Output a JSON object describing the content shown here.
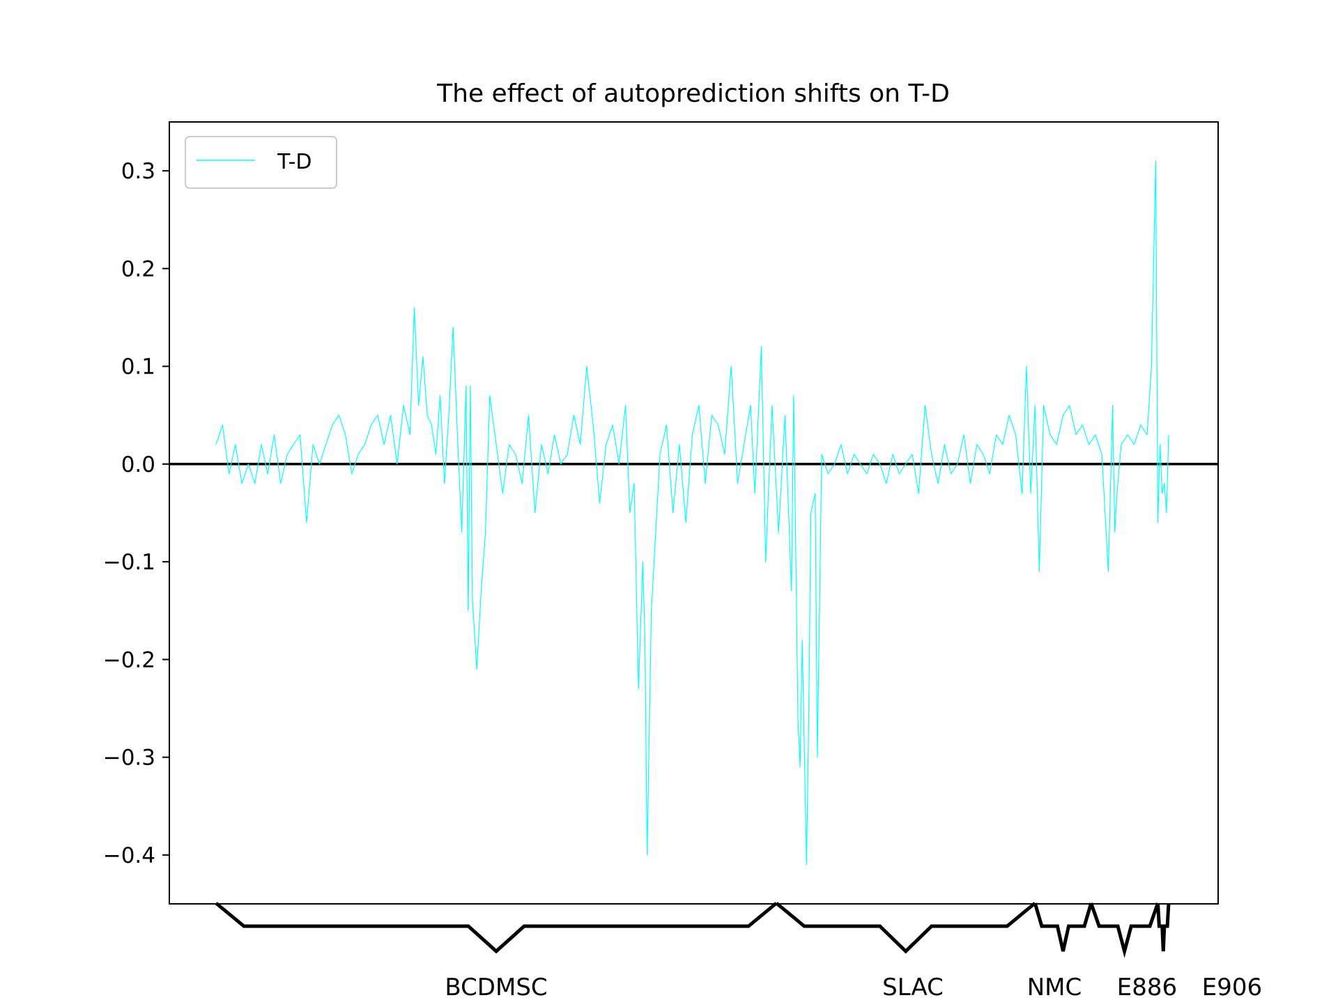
{
  "chart_data": {
    "type": "line",
    "title": "The effect of autoprediction shifts on T-D",
    "xlabel": "",
    "ylabel": "",
    "ylim": [
      -0.45,
      0.35
    ],
    "yticks": [
      0.3,
      0.2,
      0.1,
      0.0,
      -0.1,
      -0.2,
      -0.3,
      -0.4
    ],
    "ytick_labels": [
      "0.3",
      "0.2",
      "0.1",
      "0.0",
      "−0.1",
      "−0.2",
      "−0.3",
      "−0.4"
    ],
    "grid": false,
    "legend": {
      "position": "top-left",
      "entries": [
        "T-D"
      ]
    },
    "reference_line": {
      "y": 0.0,
      "color": "#000000"
    },
    "series": [
      {
        "name": "T-D",
        "color": "#00ffff",
        "keypoints": [
          [
            0,
            0.02
          ],
          [
            3,
            0.04
          ],
          [
            6,
            -0.01
          ],
          [
            9,
            0.02
          ],
          [
            12,
            -0.02
          ],
          [
            15,
            0.0
          ],
          [
            18,
            -0.02
          ],
          [
            21,
            0.02
          ],
          [
            24,
            -0.01
          ],
          [
            27,
            0.03
          ],
          [
            30,
            -0.02
          ],
          [
            33,
            0.01
          ],
          [
            36,
            0.02
          ],
          [
            39,
            0.03
          ],
          [
            42,
            -0.06
          ],
          [
            45,
            0.02
          ],
          [
            48,
            0.0
          ],
          [
            51,
            0.02
          ],
          [
            54,
            0.04
          ],
          [
            57,
            0.05
          ],
          [
            60,
            0.03
          ],
          [
            63,
            -0.01
          ],
          [
            66,
            0.01
          ],
          [
            69,
            0.02
          ],
          [
            72,
            0.04
          ],
          [
            75,
            0.05
          ],
          [
            78,
            0.02
          ],
          [
            81,
            0.05
          ],
          [
            84,
            0.0
          ],
          [
            87,
            0.06
          ],
          [
            90,
            0.03
          ],
          [
            92,
            0.16
          ],
          [
            94,
            0.06
          ],
          [
            96,
            0.11
          ],
          [
            98,
            0.05
          ],
          [
            100,
            0.04
          ],
          [
            102,
            0.01
          ],
          [
            104,
            0.07
          ],
          [
            106,
            -0.02
          ],
          [
            108,
            0.05
          ],
          [
            110,
            0.14
          ],
          [
            112,
            0.03
          ],
          [
            114,
            -0.07
          ],
          [
            116,
            0.08
          ],
          [
            117,
            -0.15
          ],
          [
            118,
            0.08
          ],
          [
            119,
            -0.14
          ],
          [
            121,
            -0.21
          ],
          [
            123,
            -0.13
          ],
          [
            125,
            -0.07
          ],
          [
            127,
            0.07
          ],
          [
            130,
            0.02
          ],
          [
            133,
            -0.03
          ],
          [
            136,
            0.02
          ],
          [
            139,
            0.01
          ],
          [
            142,
            -0.02
          ],
          [
            145,
            0.05
          ],
          [
            148,
            -0.05
          ],
          [
            151,
            0.02
          ],
          [
            154,
            -0.01
          ],
          [
            157,
            0.03
          ],
          [
            160,
            0.0
          ],
          [
            163,
            0.01
          ],
          [
            166,
            0.05
          ],
          [
            169,
            0.02
          ],
          [
            172,
            0.1
          ],
          [
            175,
            0.04
          ],
          [
            178,
            -0.04
          ],
          [
            181,
            0.02
          ],
          [
            184,
            0.04
          ],
          [
            187,
            0.0
          ],
          [
            190,
            0.06
          ],
          [
            192,
            -0.05
          ],
          [
            194,
            -0.02
          ],
          [
            196,
            -0.23
          ],
          [
            198,
            -0.1
          ],
          [
            199,
            -0.18
          ],
          [
            200,
            -0.4
          ],
          [
            202,
            -0.15
          ],
          [
            204,
            -0.07
          ],
          [
            206,
            0.01
          ],
          [
            209,
            0.04
          ],
          [
            212,
            -0.05
          ],
          [
            215,
            0.02
          ],
          [
            218,
            -0.06
          ],
          [
            221,
            0.03
          ],
          [
            224,
            0.06
          ],
          [
            227,
            -0.02
          ],
          [
            230,
            0.05
          ],
          [
            233,
            0.04
          ],
          [
            236,
            0.01
          ],
          [
            239,
            0.1
          ],
          [
            242,
            -0.02
          ],
          [
            245,
            0.02
          ],
          [
            248,
            0.06
          ],
          [
            250,
            -0.03
          ],
          [
            253,
            0.12
          ],
          [
            255,
            -0.1
          ],
          [
            258,
            0.06
          ],
          [
            261,
            -0.07
          ],
          [
            264,
            0.05
          ],
          [
            267,
            -0.13
          ],
          [
            268,
            0.07
          ],
          [
            270,
            -0.26
          ],
          [
            271,
            -0.31
          ],
          [
            272,
            -0.18
          ],
          [
            274,
            -0.41
          ],
          [
            275,
            -0.26
          ],
          [
            276,
            -0.05
          ],
          [
            278,
            -0.03
          ],
          [
            279,
            -0.3
          ],
          [
            281,
            0.01
          ],
          [
            284,
            -0.01
          ],
          [
            287,
            0.0
          ],
          [
            290,
            0.02
          ],
          [
            293,
            -0.01
          ],
          [
            296,
            0.01
          ],
          [
            299,
            0.0
          ],
          [
            302,
            -0.01
          ],
          [
            305,
            0.01
          ],
          [
            308,
            0.0
          ],
          [
            311,
            -0.02
          ],
          [
            314,
            0.01
          ],
          [
            317,
            -0.01
          ],
          [
            320,
            0.0
          ],
          [
            323,
            0.01
          ],
          [
            326,
            -0.03
          ],
          [
            329,
            0.06
          ],
          [
            332,
            0.01
          ],
          [
            335,
            -0.02
          ],
          [
            338,
            0.02
          ],
          [
            341,
            -0.01
          ],
          [
            344,
            0.0
          ],
          [
            347,
            0.03
          ],
          [
            350,
            -0.02
          ],
          [
            353,
            0.02
          ],
          [
            356,
            0.01
          ],
          [
            359,
            -0.01
          ],
          [
            362,
            0.03
          ],
          [
            365,
            0.02
          ],
          [
            368,
            0.05
          ],
          [
            371,
            0.03
          ],
          [
            374,
            -0.03
          ],
          [
            376,
            0.1
          ],
          [
            378,
            -0.03
          ],
          [
            380,
            0.06
          ],
          [
            382,
            -0.11
          ],
          [
            384,
            0.06
          ],
          [
            387,
            0.03
          ],
          [
            390,
            0.02
          ],
          [
            393,
            0.05
          ],
          [
            396,
            0.06
          ],
          [
            399,
            0.03
          ],
          [
            402,
            0.04
          ],
          [
            405,
            0.02
          ],
          [
            408,
            0.03
          ],
          [
            411,
            0.01
          ],
          [
            413,
            -0.07
          ],
          [
            414,
            -0.11
          ],
          [
            416,
            0.06
          ],
          [
            417,
            -0.07
          ],
          [
            418,
            -0.03
          ],
          [
            420,
            0.02
          ],
          [
            423,
            0.03
          ],
          [
            426,
            0.02
          ],
          [
            429,
            0.04
          ],
          [
            432,
            0.03
          ],
          [
            434,
            0.1
          ],
          [
            436,
            0.31
          ],
          [
            437,
            -0.06
          ],
          [
            438,
            0.02
          ],
          [
            439,
            -0.03
          ],
          [
            440,
            -0.02
          ],
          [
            441,
            -0.05
          ],
          [
            442,
            0.03
          ]
        ]
      }
    ],
    "categories": [
      "BCDMSC",
      "SLAC",
      "NMC",
      "E886",
      "E906"
    ],
    "category_groups": [
      {
        "label": "BCDMSC",
        "start": 0,
        "end": 260
      },
      {
        "label": "SLAC",
        "start": 260,
        "end": 380
      },
      {
        "label": "NMC",
        "start": 380,
        "end": 406
      },
      {
        "label": "E886",
        "start": 406,
        "end": 437
      },
      {
        "label": "E906",
        "start": 437,
        "end": 442
      }
    ]
  }
}
